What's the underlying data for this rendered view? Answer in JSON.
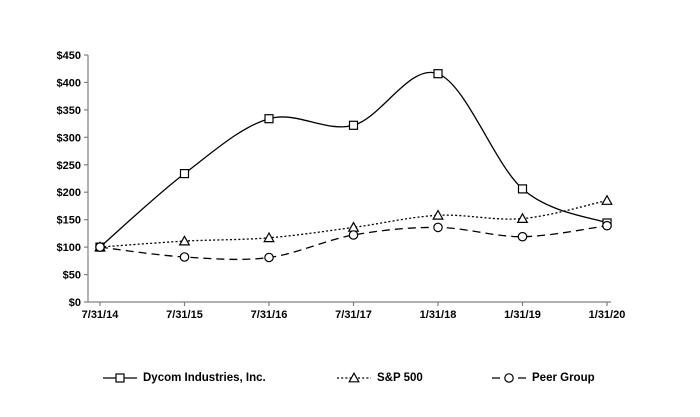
{
  "chart_data": {
    "type": "line",
    "title": "",
    "xlabel": "",
    "ylabel": "",
    "x_labels": [
      "7/31/14",
      "7/31/15",
      "7/31/16",
      "7/31/17",
      "1/31/18",
      "1/31/19",
      "1/31/20"
    ],
    "ylim": [
      0,
      450
    ],
    "y_tick_step": 50,
    "y_tick_labels": [
      "$0",
      "$50",
      "$100",
      "$150",
      "$200",
      "$250",
      "$300",
      "$350",
      "$400",
      "$450"
    ],
    "grid": false,
    "legend_position": "bottom",
    "line_color": "#000000",
    "axis_color": "#808080",
    "marker_fill": "#ffffff",
    "smooth": true,
    "series": [
      {
        "name": "Dycom Industries, Inc.",
        "marker": "square",
        "dash": "solid",
        "values": [
          100,
          234,
          334,
          322,
          416,
          206,
          144
        ]
      },
      {
        "name": "S&P 500",
        "marker": "triangle",
        "dash": "dotted",
        "values": [
          100,
          111,
          117,
          136,
          158,
          152,
          185
        ]
      },
      {
        "name": "Peer Group",
        "marker": "circle",
        "dash": "dashed",
        "values": [
          100,
          82,
          81,
          122,
          136,
          119,
          139
        ]
      }
    ]
  }
}
